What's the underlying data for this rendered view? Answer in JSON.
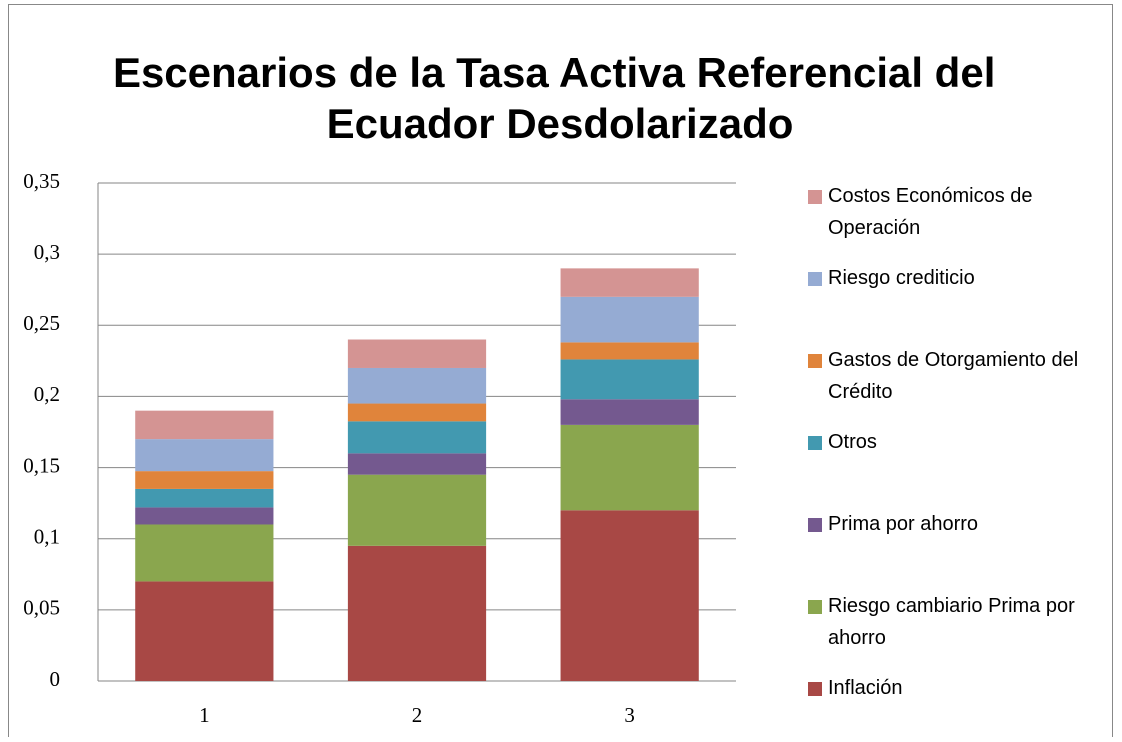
{
  "chart_data": {
    "type": "stacked_bar",
    "title": "Escenarios de la Tasa Activa Referencial del Ecuador Desdolarizado",
    "categories": [
      "1",
      "2",
      "3"
    ],
    "series": [
      {
        "name": "Inflación",
        "color": "#a84845",
        "values": [
          0.07,
          0.095,
          0.12
        ]
      },
      {
        "name": "Riesgo cambiario Prima por ahorro",
        "color": "#8aa64e",
        "values": [
          0.04,
          0.05,
          0.06
        ]
      },
      {
        "name": "Prima por ahorro",
        "color": "#74598f",
        "values": [
          0.012,
          0.015,
          0.018
        ]
      },
      {
        "name": "Otros",
        "color": "#4299b0",
        "values": [
          0.013,
          0.0225,
          0.028
        ]
      },
      {
        "name": "Gastos de Otorgamiento del Crédito",
        "color": "#e0843b",
        "values": [
          0.0125,
          0.0125,
          0.012
        ]
      },
      {
        "name": "Riesgo crediticio",
        "color": "#95abd3",
        "values": [
          0.0225,
          0.025,
          0.032
        ]
      },
      {
        "name": "Costos Económicos de Operación",
        "color": "#d49493",
        "values": [
          0.02,
          0.02,
          0.02
        ]
      }
    ],
    "ylim": [
      0,
      0.35
    ],
    "yticks": [
      0,
      {
        "value": 0.05,
        "label": "0,05"
      },
      {
        "value": 0.1,
        "label": "0,1"
      },
      {
        "value": 0.15,
        "label": "0,15"
      },
      {
        "value": 0.2,
        "label": "0,2"
      },
      {
        "value": 0.25,
        "label": "0,25"
      },
      {
        "value": 0.3,
        "label": "0,3"
      },
      {
        "value": 0.35,
        "label": "0,35"
      }
    ],
    "grid": true,
    "legend": "right"
  }
}
